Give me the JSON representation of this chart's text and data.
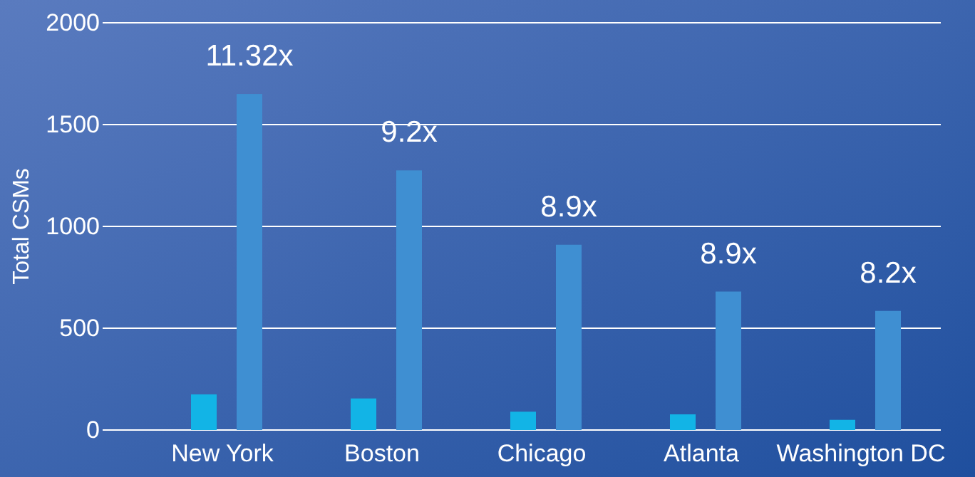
{
  "chart_data": {
    "type": "bar",
    "ylabel": "Total CSMs",
    "categories": [
      "New York",
      "Boston",
      "Chicago",
      "Atlanta",
      "Washington DC"
    ],
    "series": [
      {
        "color": "#12b4e6",
        "values": [
          175,
          155,
          90,
          77,
          50
        ]
      },
      {
        "color": "#3f8fd2",
        "values": [
          1650,
          1275,
          910,
          680,
          585
        ]
      }
    ],
    "ylim": [
      0,
      2000
    ],
    "yticks": [
      0,
      500,
      1000,
      1500,
      2000
    ],
    "grid": "y",
    "annotations": [
      "11.32x",
      "9.2x",
      "8.9x",
      "8.9x",
      "8.2x"
    ]
  }
}
